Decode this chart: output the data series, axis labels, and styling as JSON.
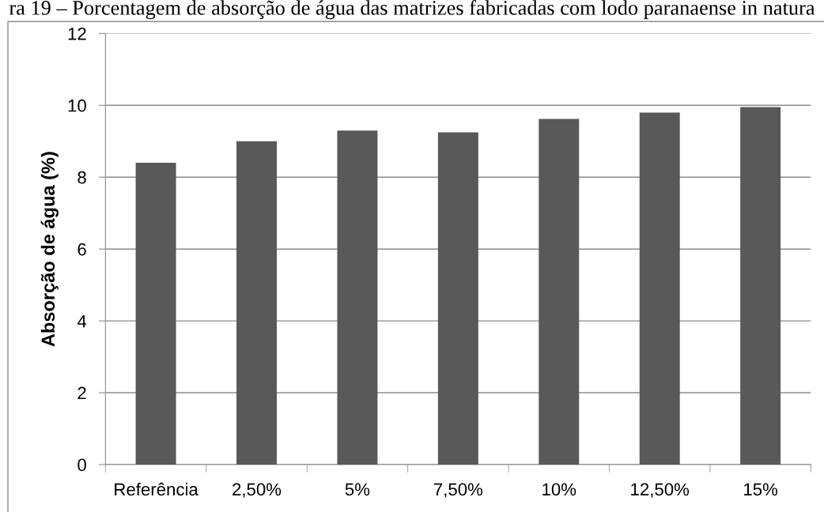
{
  "chart_data": {
    "type": "bar",
    "title": "ra 19 – Porcentagem de absorção de água das matrizes fabricadas com lodo paranaense in natura",
    "ylabel": "Absorção de água (%)",
    "categories": [
      "Referência",
      "2,50%",
      "5%",
      "7,50%",
      "10%",
      "12,50%",
      "15%"
    ],
    "values": [
      8.4,
      9.0,
      9.3,
      9.25,
      9.62,
      9.8,
      9.95
    ],
    "color": "#595959",
    "ylim": [
      0,
      12
    ],
    "yticks": [
      0,
      2,
      4,
      6,
      8,
      10,
      12
    ],
    "grid": "y"
  }
}
